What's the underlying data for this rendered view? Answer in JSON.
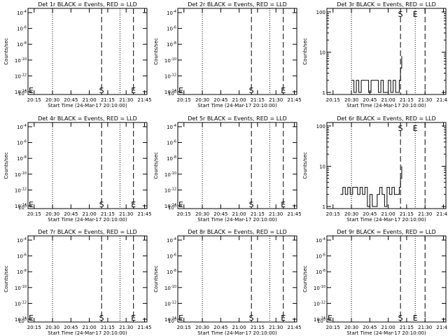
{
  "figure": {
    "x_ticks": [
      "20:15",
      "20:30",
      "20:45",
      "21:00",
      "21:15",
      "21:30",
      "21:45"
    ],
    "ylabel": "Counts/sec",
    "xlabel": "Start Time (24-Mar-17 20:10:00)",
    "marker_S": "S",
    "marker_E": "E"
  },
  "chart_data": [
    {
      "type": "line",
      "title": "Det 1r BLACK = Events, RED = LLD",
      "yscale": "log",
      "x_range_minutes_after_start": [
        0,
        97
      ],
      "ylim": [
        1,
        0.0001
      ],
      "y_tick_labels": [
        "10^-4",
        "10^-6",
        "10^-8",
        "10^-10",
        "10^-12",
        "10^-14"
      ],
      "marker_times": {
        "S": "21:10",
        "E": "21:36"
      },
      "dotted_lines": [
        "20:30",
        "21:25"
      ],
      "dashed_lines": [
        "21:10",
        "21:36"
      ],
      "series": [],
      "left_marker": "E"
    },
    {
      "type": "line",
      "title": "Det 2r BLACK = Events, RED = LLD",
      "yscale": "log",
      "x_range_minutes_after_start": [
        0,
        97
      ],
      "ylim": [
        1,
        0.0001
      ],
      "y_tick_labels": [
        "10^-4",
        "10^-6",
        "10^-8",
        "10^-10",
        "10^-12",
        "10^-14"
      ],
      "marker_times": {
        "S": "21:10",
        "E": "21:36"
      },
      "dotted_lines": [
        "20:30",
        "21:25"
      ],
      "dashed_lines": [
        "21:10",
        "21:36"
      ],
      "series": [],
      "left_marker": "E"
    },
    {
      "type": "line",
      "title": "Det 3r BLACK = Events, RED = LLD",
      "yscale": "log",
      "x_range_minutes_after_start": [
        0,
        97
      ],
      "ylim": [
        1,
        100
      ],
      "y_tick_labels": [
        "1",
        "10",
        "100"
      ],
      "marker_times": {
        "S": "21:10",
        "E": "21:22"
      },
      "dotted_lines": [
        "20:30",
        "21:22"
      ],
      "dashed_lines": [
        "21:10",
        "21:30"
      ],
      "series": [
        {
          "x": [
            "20:30",
            "20:32",
            "20:34",
            "20:36",
            "20:38",
            "20:40",
            "20:42",
            "20:44",
            "20:46",
            "20:48",
            "20:50",
            "20:52",
            "20:54",
            "20:56",
            "20:58",
            "21:00",
            "21:02",
            "21:04",
            "21:06",
            "21:08",
            "21:09",
            "21:10",
            "21:11"
          ],
          "y": [
            2,
            1,
            2,
            1,
            2,
            2,
            2,
            1,
            2,
            2,
            2,
            1,
            2,
            1,
            1,
            2,
            1,
            2,
            1,
            1,
            2,
            4,
            8
          ]
        }
      ],
      "left_marker": ""
    },
    {
      "type": "line",
      "title": "Det 4r BLACK = Events, RED = LLD",
      "yscale": "log",
      "x_range_minutes_after_start": [
        0,
        97
      ],
      "ylim": [
        1,
        0.0001
      ],
      "y_tick_labels": [
        "10^-4",
        "10^-6",
        "10^-8",
        "10^-10",
        "10^-12",
        "10^-14"
      ],
      "marker_times": {
        "S": "21:10",
        "E": "21:36"
      },
      "dotted_lines": [
        "20:30",
        "21:25"
      ],
      "dashed_lines": [
        "21:10",
        "21:36"
      ],
      "series": [],
      "left_marker": "E"
    },
    {
      "type": "line",
      "title": "Det 5r BLACK = Events, RED = LLD",
      "yscale": "log",
      "x_range_minutes_after_start": [
        0,
        97
      ],
      "ylim": [
        1,
        0.0001
      ],
      "y_tick_labels": [
        "10^-4",
        "10^-6",
        "10^-8",
        "10^-10",
        "10^-12",
        "10^-14"
      ],
      "marker_times": {
        "S": "21:10",
        "E": "21:36"
      },
      "dotted_lines": [
        "20:30",
        "21:25"
      ],
      "dashed_lines": [
        "21:10",
        "21:36"
      ],
      "series": [],
      "left_marker": "E"
    },
    {
      "type": "line",
      "title": "Det 6r BLACK = Events, RED = LLD",
      "yscale": "log",
      "x_range_minutes_after_start": [
        0,
        97
      ],
      "ylim": [
        1,
        100
      ],
      "y_tick_labels": [
        "1",
        "10",
        "100"
      ],
      "marker_times": {
        "S": "21:10",
        "E": "21:22"
      },
      "dotted_lines": [
        "20:30",
        "21:22"
      ],
      "dashed_lines": [
        "21:10",
        "21:30"
      ],
      "series": [
        {
          "x": [
            "20:21",
            "20:23",
            "20:25",
            "20:27",
            "20:29",
            "20:31",
            "20:33",
            "20:35",
            "20:37",
            "20:39",
            "20:41",
            "20:43",
            "20:45",
            "20:47",
            "20:49",
            "20:51",
            "20:53",
            "20:55",
            "20:57",
            "20:59",
            "21:01",
            "21:03",
            "21:05",
            "21:07",
            "21:09",
            "21:10",
            "21:11"
          ],
          "y": [
            2,
            3,
            2,
            3,
            2,
            3,
            3,
            2,
            3,
            2,
            3,
            1,
            2,
            1,
            1,
            2,
            3,
            2,
            1,
            3,
            2,
            3,
            2,
            2,
            3,
            5,
            10
          ]
        }
      ],
      "left_marker": ""
    },
    {
      "type": "line",
      "title": "Det 7r BLACK = Events, RED = LLD",
      "yscale": "log",
      "x_range_minutes_after_start": [
        0,
        97
      ],
      "ylim": [
        1,
        0.0001
      ],
      "y_tick_labels": [
        "10^-4",
        "10^-6",
        "10^-8",
        "10^-10",
        "10^-12",
        "10^-14"
      ],
      "marker_times": {
        "S": "21:10",
        "E": "21:36"
      },
      "dotted_lines": [
        "20:30",
        "21:25"
      ],
      "dashed_lines": [
        "21:10",
        "21:36"
      ],
      "series": [],
      "left_marker": "E"
    },
    {
      "type": "line",
      "title": "Det 8r BLACK = Events, RED = LLD",
      "yscale": "log",
      "x_range_minutes_after_start": [
        0,
        97
      ],
      "ylim": [
        1,
        0.0001
      ],
      "y_tick_labels": [
        "10^-4",
        "10^-6",
        "10^-8",
        "10^-10",
        "10^-12",
        "10^-14"
      ],
      "marker_times": {
        "S": "21:10",
        "E": "21:36"
      },
      "dotted_lines": [
        "20:30",
        "21:25"
      ],
      "dashed_lines": [
        "21:10",
        "21:36"
      ],
      "series": [],
      "left_marker": "E"
    },
    {
      "type": "line",
      "title": "Det 9r BLACK = Events, RED = LLD",
      "yscale": "log",
      "x_range_minutes_after_start": [
        0,
        97
      ],
      "ylim": [
        1,
        0.0001
      ],
      "y_tick_labels": [
        "10^-4",
        "10^-6",
        "10^-8",
        "10^-10",
        "10^-12",
        "10^-14"
      ],
      "marker_times": {
        "S": "21:10",
        "E": "21:22"
      },
      "dotted_lines": [
        "20:30",
        "21:22"
      ],
      "dashed_lines": [
        "21:10",
        "21:30"
      ],
      "series": [],
      "left_marker": "E"
    }
  ]
}
